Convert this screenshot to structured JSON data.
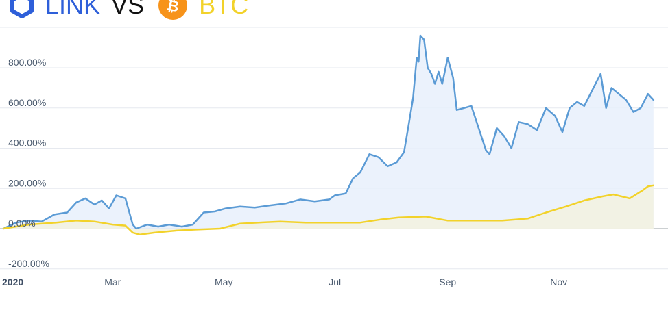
{
  "header": {
    "coin_a": "LINK",
    "vs": "VS",
    "coin_b": "BTC",
    "coin_a_icon": "chainlink-hexagon-icon",
    "coin_b_icon": "bitcoin-icon",
    "coin_a_color": "#2e5fd9",
    "coin_b_color": "#f2d22a",
    "btc_icon_color": "#f7931a"
  },
  "chart_data": {
    "type": "area",
    "title": "LINK VS BTC",
    "xlabel": "",
    "ylabel": "",
    "y_ticks": [
      "800.00%",
      "600.00%",
      "400.00%",
      "200.00%",
      "0.00%",
      "-200.00%"
    ],
    "y_tick_values": [
      800,
      600,
      400,
      200,
      0,
      -200
    ],
    "x_ticks": [
      "2020",
      "Mar",
      "May",
      "Jul",
      "Sep",
      "Nov"
    ],
    "x_tick_dates": [
      "2020-01-01",
      "2020-03-01",
      "2020-05-01",
      "2020-07-01",
      "2020-09-01",
      "2020-11-01"
    ],
    "x_range": [
      "2020-01-01",
      "2020-12-31"
    ],
    "ylim": [
      -230,
      960
    ],
    "grid": true,
    "legend": "none",
    "series": [
      {
        "name": "LINK",
        "color": "#5b9bd5",
        "fill": "#e8f0fb",
        "points": [
          [
            "2020-01-01",
            0
          ],
          [
            "2020-01-08",
            30
          ],
          [
            "2020-01-15",
            40
          ],
          [
            "2020-01-22",
            35
          ],
          [
            "2020-01-29",
            70
          ],
          [
            "2020-02-05",
            80
          ],
          [
            "2020-02-10",
            130
          ],
          [
            "2020-02-15",
            150
          ],
          [
            "2020-02-20",
            120
          ],
          [
            "2020-02-24",
            140
          ],
          [
            "2020-02-28",
            100
          ],
          [
            "2020-03-03",
            165
          ],
          [
            "2020-03-08",
            150
          ],
          [
            "2020-03-12",
            20
          ],
          [
            "2020-03-14",
            0
          ],
          [
            "2020-03-20",
            20
          ],
          [
            "2020-03-26",
            10
          ],
          [
            "2020-04-01",
            20
          ],
          [
            "2020-04-08",
            10
          ],
          [
            "2020-04-14",
            20
          ],
          [
            "2020-04-20",
            80
          ],
          [
            "2020-04-26",
            85
          ],
          [
            "2020-05-02",
            100
          ],
          [
            "2020-05-10",
            110
          ],
          [
            "2020-05-18",
            105
          ],
          [
            "2020-05-26",
            115
          ],
          [
            "2020-06-04",
            125
          ],
          [
            "2020-06-12",
            145
          ],
          [
            "2020-06-20",
            135
          ],
          [
            "2020-06-28",
            145
          ],
          [
            "2020-07-01",
            165
          ],
          [
            "2020-07-07",
            175
          ],
          [
            "2020-07-11",
            250
          ],
          [
            "2020-07-15",
            280
          ],
          [
            "2020-07-20",
            370
          ],
          [
            "2020-07-25",
            355
          ],
          [
            "2020-07-30",
            310
          ],
          [
            "2020-08-04",
            330
          ],
          [
            "2020-08-08",
            380
          ],
          [
            "2020-08-11",
            540
          ],
          [
            "2020-08-13",
            650
          ],
          [
            "2020-08-15",
            850
          ],
          [
            "2020-08-16",
            830
          ],
          [
            "2020-08-17",
            960
          ],
          [
            "2020-08-19",
            940
          ],
          [
            "2020-08-21",
            800
          ],
          [
            "2020-08-23",
            770
          ],
          [
            "2020-08-25",
            720
          ],
          [
            "2020-08-27",
            780
          ],
          [
            "2020-08-29",
            720
          ],
          [
            "2020-09-01",
            850
          ],
          [
            "2020-09-04",
            750
          ],
          [
            "2020-09-06",
            590
          ],
          [
            "2020-09-10",
            600
          ],
          [
            "2020-09-14",
            610
          ],
          [
            "2020-09-18",
            500
          ],
          [
            "2020-09-22",
            390
          ],
          [
            "2020-09-24",
            370
          ],
          [
            "2020-09-28",
            500
          ],
          [
            "2020-10-02",
            460
          ],
          [
            "2020-10-06",
            400
          ],
          [
            "2020-10-10",
            530
          ],
          [
            "2020-10-15",
            520
          ],
          [
            "2020-10-20",
            490
          ],
          [
            "2020-10-25",
            600
          ],
          [
            "2020-10-30",
            560
          ],
          [
            "2020-11-03",
            480
          ],
          [
            "2020-11-07",
            600
          ],
          [
            "2020-11-11",
            630
          ],
          [
            "2020-11-15",
            610
          ],
          [
            "2020-11-20",
            700
          ],
          [
            "2020-11-24",
            770
          ],
          [
            "2020-11-27",
            600
          ],
          [
            "2020-11-30",
            700
          ],
          [
            "2020-12-04",
            670
          ],
          [
            "2020-12-08",
            640
          ],
          [
            "2020-12-12",
            580
          ],
          [
            "2020-12-16",
            600
          ],
          [
            "2020-12-20",
            670
          ],
          [
            "2020-12-23",
            640
          ]
        ]
      },
      {
        "name": "BTC",
        "color": "#f2d22a",
        "fill": "#f3f2df",
        "points": [
          [
            "2020-01-01",
            0
          ],
          [
            "2020-01-15",
            20
          ],
          [
            "2020-01-30",
            30
          ],
          [
            "2020-02-10",
            40
          ],
          [
            "2020-02-20",
            35
          ],
          [
            "2020-03-01",
            20
          ],
          [
            "2020-03-08",
            15
          ],
          [
            "2020-03-12",
            -20
          ],
          [
            "2020-03-16",
            -30
          ],
          [
            "2020-03-24",
            -20
          ],
          [
            "2020-04-05",
            -10
          ],
          [
            "2020-04-15",
            -5
          ],
          [
            "2020-04-29",
            0
          ],
          [
            "2020-05-10",
            25
          ],
          [
            "2020-05-20",
            30
          ],
          [
            "2020-06-01",
            35
          ],
          [
            "2020-06-15",
            30
          ],
          [
            "2020-07-01",
            30
          ],
          [
            "2020-07-15",
            30
          ],
          [
            "2020-07-26",
            45
          ],
          [
            "2020-08-05",
            55
          ],
          [
            "2020-08-20",
            60
          ],
          [
            "2020-09-01",
            40
          ],
          [
            "2020-09-15",
            40
          ],
          [
            "2020-10-01",
            40
          ],
          [
            "2020-10-15",
            50
          ],
          [
            "2020-10-25",
            80
          ],
          [
            "2020-11-05",
            110
          ],
          [
            "2020-11-15",
            140
          ],
          [
            "2020-11-25",
            160
          ],
          [
            "2020-12-01",
            170
          ],
          [
            "2020-12-10",
            150
          ],
          [
            "2020-12-17",
            190
          ],
          [
            "2020-12-20",
            210
          ],
          [
            "2020-12-23",
            215
          ]
        ]
      }
    ]
  }
}
